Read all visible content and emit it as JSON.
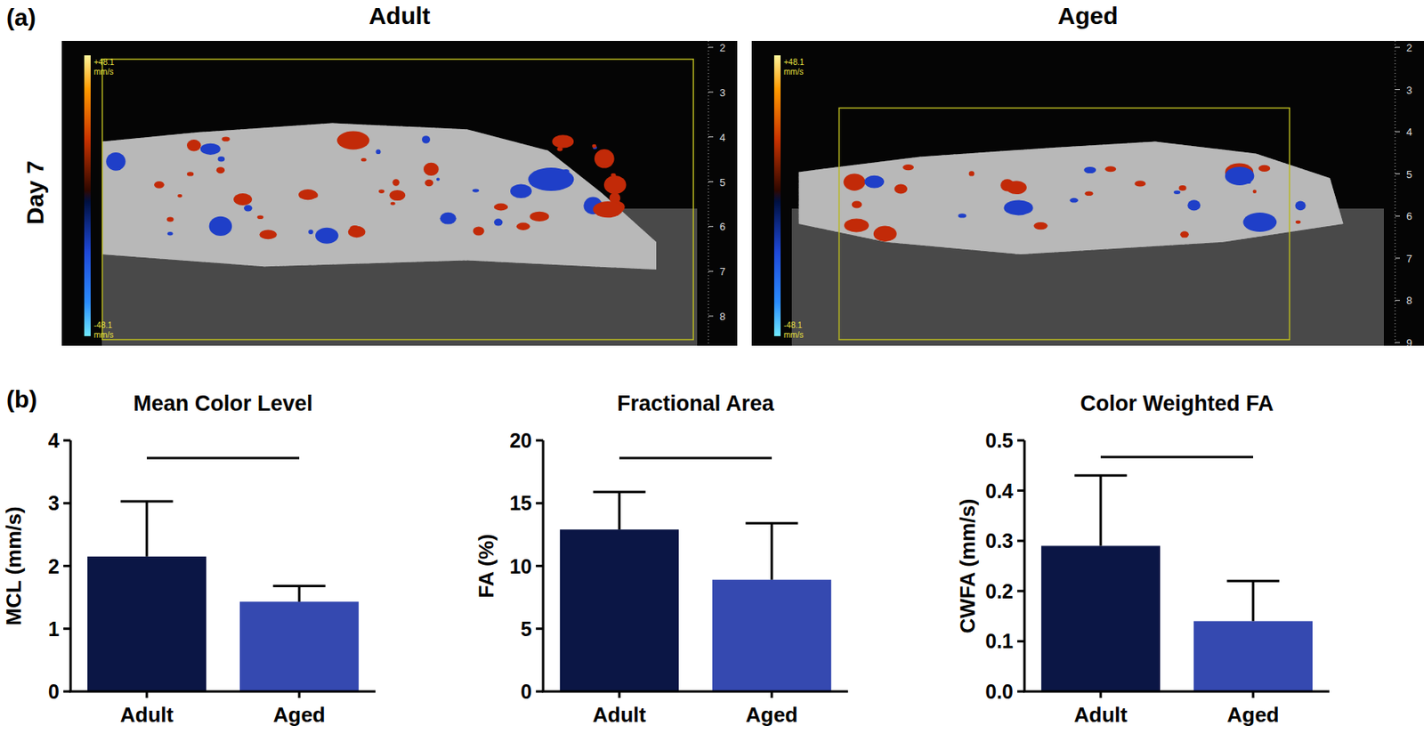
{
  "panel_a": {
    "label": "(a)",
    "row_label": "Day 7",
    "images": [
      {
        "title": "Adult",
        "scale_max": "+48.1",
        "scale_min": "-48.1",
        "scale_unit": "mm/s",
        "depth_ticks": [
          2,
          3,
          4,
          5,
          6,
          7,
          8
        ]
      },
      {
        "title": "Aged",
        "scale_max": "+48.1",
        "scale_min": "-48.1",
        "scale_unit": "mm/s",
        "depth_ticks": [
          2,
          3,
          4,
          5,
          6,
          7,
          8,
          9
        ]
      }
    ]
  },
  "panel_b": {
    "label": "(b)"
  },
  "chart_data": [
    {
      "type": "bar",
      "title": "Mean Color Level",
      "y_label": "MCL (mm/s)",
      "categories": [
        "Adult",
        "Aged"
      ],
      "values": [
        2.15,
        1.43
      ],
      "errors": [
        0.88,
        0.25
      ],
      "colors": [
        "#0b1645",
        "#3549b0"
      ],
      "ylim": [
        0,
        4
      ],
      "yticks": [
        0,
        1,
        2,
        3,
        4
      ],
      "significance_line": 3.72
    },
    {
      "type": "bar",
      "title": "Fractional Area",
      "y_label": "FA (%)",
      "categories": [
        "Adult",
        "Aged"
      ],
      "values": [
        12.9,
        8.9
      ],
      "errors": [
        3.0,
        4.5
      ],
      "colors": [
        "#0b1645",
        "#3549b0"
      ],
      "ylim": [
        0,
        20
      ],
      "yticks": [
        0,
        5,
        10,
        15,
        20
      ],
      "significance_line": 18.6
    },
    {
      "type": "bar",
      "title": "Color Weighted FA",
      "y_label": "CWFA (mm/s)",
      "categories": [
        "Adult",
        "Aged"
      ],
      "values": [
        0.29,
        0.14
      ],
      "errors": [
        0.14,
        0.08
      ],
      "colors": [
        "#0b1645",
        "#3549b0"
      ],
      "ylim": [
        0,
        0.5
      ],
      "yticks": [
        {
          "value": 0,
          "label": "0.0"
        },
        0.1,
        0.2,
        0.3,
        0.4,
        0.5
      ],
      "significance_line": 0.467
    }
  ]
}
